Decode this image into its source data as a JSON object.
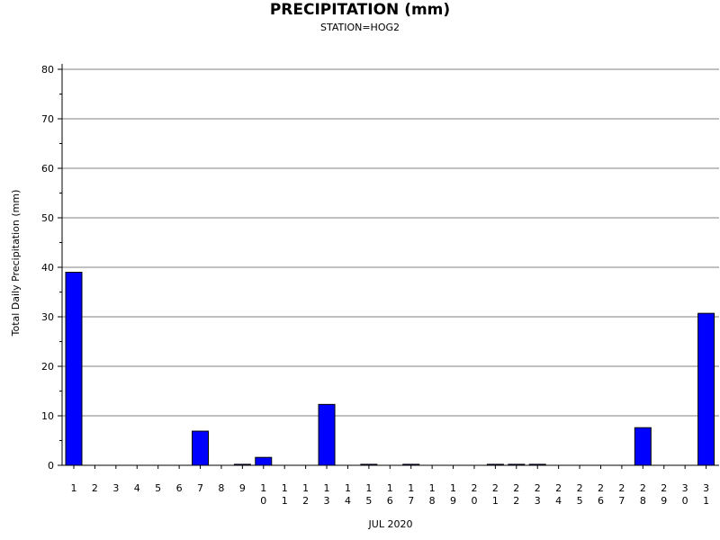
{
  "chart_data": {
    "type": "bar",
    "title": "PRECIPITATION (mm)",
    "subtitle": "STATION=HOG2",
    "xlabel": "JUL 2020",
    "ylabel": "Total Daily Precipitation (mm)",
    "ylim": [
      0,
      80
    ],
    "yticks": [
      0,
      10,
      20,
      30,
      40,
      50,
      60,
      70,
      80
    ],
    "grid": true,
    "bar_color": "#0000ff",
    "categories": [
      "1",
      "2",
      "3",
      "4",
      "5",
      "6",
      "7",
      "8",
      "9",
      "10",
      "11",
      "12",
      "13",
      "14",
      "15",
      "16",
      "17",
      "18",
      "19",
      "20",
      "21",
      "22",
      "23",
      "24",
      "25",
      "26",
      "27",
      "28",
      "29",
      "30",
      "31"
    ],
    "values": [
      39.0,
      0,
      0,
      0,
      0,
      0,
      6.9,
      0,
      0.2,
      1.6,
      0,
      0,
      12.3,
      0,
      0.2,
      0,
      0.2,
      0,
      0,
      0,
      0.2,
      0.2,
      0.2,
      0,
      0,
      0,
      0,
      7.6,
      0,
      0,
      30.7
    ]
  }
}
